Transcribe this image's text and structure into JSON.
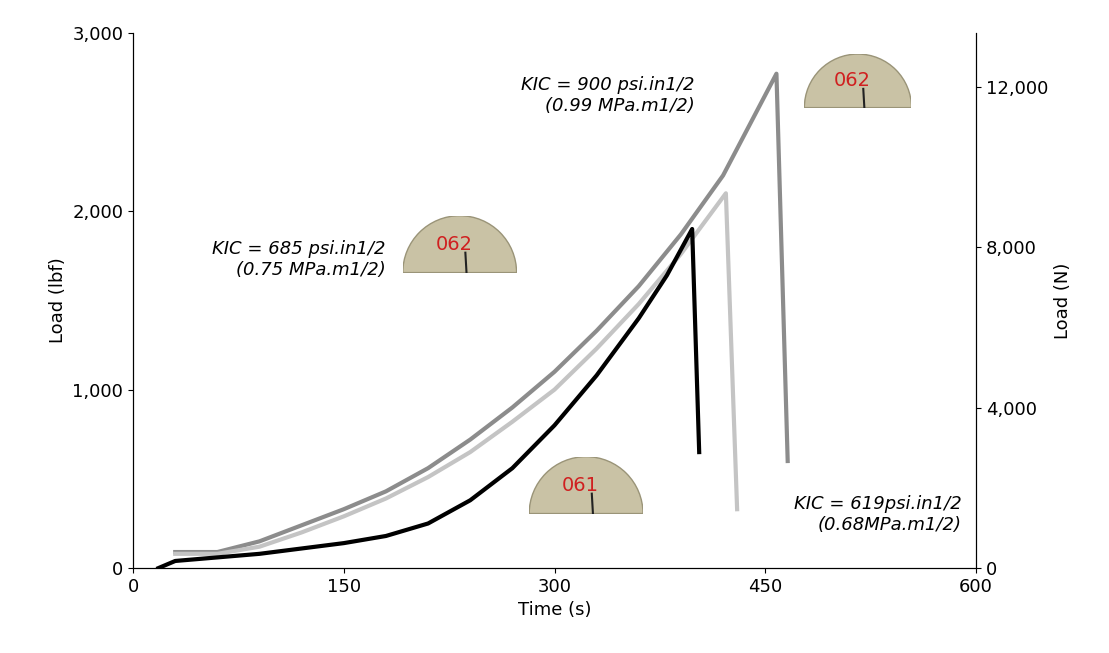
{
  "chart_data": {
    "type": "line",
    "x_label": "Time (s)",
    "y_label": "Load (lbf)",
    "y2_label": "Load (N)",
    "xlim": [
      0,
      600
    ],
    "xticks": [
      0,
      150,
      300,
      450,
      600
    ],
    "ylim": [
      0,
      3000
    ],
    "yticks": [
      0,
      {
        "value": 1000,
        "label": "1,000"
      },
      {
        "value": 2000,
        "label": "2,000"
      },
      {
        "value": 3000,
        "label": "3,000"
      }
    ],
    "y2lim": [
      0,
      13345
    ],
    "y2ticks": [
      0,
      {
        "value": 4000,
        "label": "4,000"
      },
      {
        "value": 8000,
        "label": "8,000"
      },
      {
        "value": 12000,
        "label": "12,000"
      }
    ],
    "grid": false,
    "series": [
      {
        "color": "#8c8c8c",
        "line_style": "solid",
        "x": [
          30,
          60,
          90,
          120,
          150,
          180,
          210,
          240,
          270,
          300,
          330,
          360,
          390,
          420,
          458,
          466
        ],
        "values": [
          90,
          90,
          150,
          240,
          330,
          430,
          560,
          720,
          900,
          1100,
          1330,
          1580,
          1870,
          2200,
          2770,
          600
        ]
      },
      {
        "color": "#c4c4c4",
        "line_style": "solid",
        "x": [
          30,
          60,
          90,
          120,
          150,
          180,
          210,
          240,
          270,
          300,
          330,
          360,
          390,
          422,
          430
        ],
        "values": [
          80,
          80,
          120,
          200,
          290,
          390,
          510,
          650,
          820,
          1000,
          1230,
          1480,
          1760,
          2100,
          330
        ]
      },
      {
        "color": "#000000",
        "line_style": "solid",
        "x": [
          18,
          30,
          60,
          90,
          120,
          150,
          180,
          210,
          240,
          270,
          300,
          330,
          360,
          380,
          398,
          403
        ],
        "values": [
          0,
          40,
          60,
          80,
          110,
          140,
          180,
          250,
          380,
          560,
          800,
          1080,
          1400,
          1640,
          1900,
          650
        ]
      }
    ],
    "annotations": [
      "KIC = 900 psi.in1/2\n(0.99 MPa.m1/2)",
      "KIC = 685 psi.in1/2\n(0.75 MPa.m1/2)",
      "KIC = 619psi.in1/2\n(0.68MPa.m1/2)"
    ],
    "specimens": [
      "062",
      "062",
      "061"
    ]
  }
}
